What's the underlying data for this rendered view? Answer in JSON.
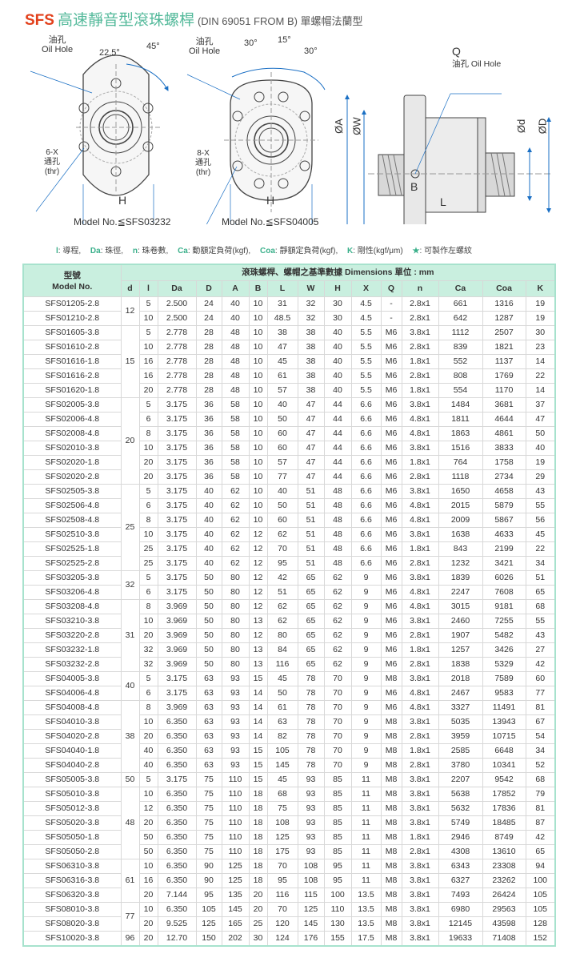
{
  "title": {
    "brand": "SFS",
    "chinese": "高速靜音型滾珠螺桿",
    "subtitle": "(DIN 69051 FROM B) 單螺帽法蘭型"
  },
  "drawings": {
    "left": {
      "oil_hole_cn": "油孔",
      "oil_hole": "Oil Hole",
      "angle1": "22.5°",
      "angle2": "45°",
      "holes": "6-X",
      "holes_cn": "通孔",
      "holes_thr": "(thr)",
      "dim": "H",
      "model": "Model No.≦SFS03232"
    },
    "middle": {
      "oil_hole_cn": "油孔",
      "oil_hole": "Oil Hole",
      "angle1": "30°",
      "angle2": "15°",
      "angle3": "30°",
      "holes": "8-X",
      "holes_cn": "通孔",
      "holes_thr": "(thr)",
      "dim": "H",
      "model": "Model No.≦SFS04005"
    },
    "side": {
      "q": "Q",
      "oil_hole_cn": "油孔",
      "oil_hole": "Oil Hole",
      "a": "ØA",
      "w": "ØW",
      "d": "Ød",
      "D": "ØD",
      "b": "B",
      "l": "L"
    }
  },
  "legend": [
    {
      "key": "l",
      "text": ": 導程,"
    },
    {
      "key": "Da",
      "text": ": 珠徑,"
    },
    {
      "key": "n",
      "text": ": 珠卷數,"
    },
    {
      "key": "Ca",
      "text": ": 動額定負荷(kgf),"
    },
    {
      "key": "Coa",
      "text": ": 靜額定負荷(kgf),"
    },
    {
      "key": "K",
      "text": ": 剛性(kgf/μm)"
    },
    {
      "key": "★",
      "text": ": 可製作左螺紋"
    }
  ],
  "table": {
    "model_header_cn": "型號",
    "model_header": "Model No.",
    "group_header": "滾珠螺桿、螺帽之基準數據 Dimensions  單位 : mm",
    "columns": [
      "d",
      "l",
      "Da",
      "D",
      "A",
      "B",
      "L",
      "W",
      "H",
      "X",
      "Q",
      "n",
      "Ca",
      "Coa",
      "K"
    ],
    "groups": [
      {
        "d": "12",
        "rows": [
          [
            "SFS01205-2.8",
            "5",
            "2.500",
            "24",
            "40",
            "10",
            "31",
            "32",
            "30",
            "4.5",
            "-",
            "2.8x1",
            "661",
            "1316",
            "19"
          ],
          [
            "SFS01210-2.8",
            "10",
            "2.500",
            "24",
            "40",
            "10",
            "48.5",
            "32",
            "30",
            "4.5",
            "-",
            "2.8x1",
            "642",
            "1287",
            "19"
          ]
        ]
      },
      {
        "d": "15",
        "rows": [
          [
            "SFS01605-3.8",
            "5",
            "2.778",
            "28",
            "48",
            "10",
            "38",
            "38",
            "40",
            "5.5",
            "M6",
            "3.8x1",
            "1112",
            "2507",
            "30"
          ],
          [
            "SFS01610-2.8",
            "10",
            "2.778",
            "28",
            "48",
            "10",
            "47",
            "38",
            "40",
            "5.5",
            "M6",
            "2.8x1",
            "839",
            "1821",
            "23"
          ],
          [
            "SFS01616-1.8",
            "16",
            "2.778",
            "28",
            "48",
            "10",
            "45",
            "38",
            "40",
            "5.5",
            "M6",
            "1.8x1",
            "552",
            "1137",
            "14"
          ],
          [
            "SFS01616-2.8",
            "16",
            "2.778",
            "28",
            "48",
            "10",
            "61",
            "38",
            "40",
            "5.5",
            "M6",
            "2.8x1",
            "808",
            "1769",
            "22"
          ],
          [
            "SFS01620-1.8",
            "20",
            "2.778",
            "28",
            "48",
            "10",
            "57",
            "38",
            "40",
            "5.5",
            "M6",
            "1.8x1",
            "554",
            "1170",
            "14"
          ]
        ]
      },
      {
        "d": "20",
        "rows": [
          [
            "SFS02005-3.8",
            "5",
            "3.175",
            "36",
            "58",
            "10",
            "40",
            "47",
            "44",
            "6.6",
            "M6",
            "3.8x1",
            "1484",
            "3681",
            "37"
          ],
          [
            "SFS02006-4.8",
            "6",
            "3.175",
            "36",
            "58",
            "10",
            "50",
            "47",
            "44",
            "6.6",
            "M6",
            "4.8x1",
            "1811",
            "4644",
            "47"
          ],
          [
            "SFS02008-4.8",
            "8",
            "3.175",
            "36",
            "58",
            "10",
            "60",
            "47",
            "44",
            "6.6",
            "M6",
            "4.8x1",
            "1863",
            "4861",
            "50"
          ],
          [
            "SFS02010-3.8",
            "10",
            "3.175",
            "36",
            "58",
            "10",
            "60",
            "47",
            "44",
            "6.6",
            "M6",
            "3.8x1",
            "1516",
            "3833",
            "40"
          ],
          [
            "SFS02020-1.8",
            "20",
            "3.175",
            "36",
            "58",
            "10",
            "57",
            "47",
            "44",
            "6.6",
            "M6",
            "1.8x1",
            "764",
            "1758",
            "19"
          ],
          [
            "SFS02020-2.8",
            "20",
            "3.175",
            "36",
            "58",
            "10",
            "77",
            "47",
            "44",
            "6.6",
            "M6",
            "2.8x1",
            "1118",
            "2734",
            "29"
          ]
        ]
      },
      {
        "d": "25",
        "rows": [
          [
            "SFS02505-3.8",
            "5",
            "3.175",
            "40",
            "62",
            "10",
            "40",
            "51",
            "48",
            "6.6",
            "M6",
            "3.8x1",
            "1650",
            "4658",
            "43"
          ],
          [
            "SFS02506-4.8",
            "6",
            "3.175",
            "40",
            "62",
            "10",
            "50",
            "51",
            "48",
            "6.6",
            "M6",
            "4.8x1",
            "2015",
            "5879",
            "55"
          ],
          [
            "SFS02508-4.8",
            "8",
            "3.175",
            "40",
            "62",
            "10",
            "60",
            "51",
            "48",
            "6.6",
            "M6",
            "4.8x1",
            "2009",
            "5867",
            "56"
          ],
          [
            "SFS02510-3.8",
            "10",
            "3.175",
            "40",
            "62",
            "12",
            "62",
            "51",
            "48",
            "6.6",
            "M6",
            "3.8x1",
            "1638",
            "4633",
            "45"
          ],
          [
            "SFS02525-1.8",
            "25",
            "3.175",
            "40",
            "62",
            "12",
            "70",
            "51",
            "48",
            "6.6",
            "M6",
            "1.8x1",
            "843",
            "2199",
            "22"
          ],
          [
            "SFS02525-2.8",
            "25",
            "3.175",
            "40",
            "62",
            "12",
            "95",
            "51",
            "48",
            "6.6",
            "M6",
            "2.8x1",
            "1232",
            "3421",
            "34"
          ]
        ]
      },
      {
        "d": "32",
        "rows": [
          [
            "SFS03205-3.8",
            "5",
            "3.175",
            "50",
            "80",
            "12",
            "42",
            "65",
            "62",
            "9",
            "M6",
            "3.8x1",
            "1839",
            "6026",
            "51"
          ],
          [
            "SFS03206-4.8",
            "6",
            "3.175",
            "50",
            "80",
            "12",
            "51",
            "65",
            "62",
            "9",
            "M6",
            "4.8x1",
            "2247",
            "7608",
            "65"
          ]
        ]
      },
      {
        "d": "31",
        "rows": [
          [
            "SFS03208-4.8",
            "8",
            "3.969",
            "50",
            "80",
            "12",
            "62",
            "65",
            "62",
            "9",
            "M6",
            "4.8x1",
            "3015",
            "9181",
            "68"
          ],
          [
            "SFS03210-3.8",
            "10",
            "3.969",
            "50",
            "80",
            "13",
            "62",
            "65",
            "62",
            "9",
            "M6",
            "3.8x1",
            "2460",
            "7255",
            "55"
          ],
          [
            "SFS03220-2.8",
            "20",
            "3.969",
            "50",
            "80",
            "12",
            "80",
            "65",
            "62",
            "9",
            "M6",
            "2.8x1",
            "1907",
            "5482",
            "43"
          ],
          [
            "SFS03232-1.8",
            "32",
            "3.969",
            "50",
            "80",
            "13",
            "84",
            "65",
            "62",
            "9",
            "M6",
            "1.8x1",
            "1257",
            "3426",
            "27"
          ],
          [
            "SFS03232-2.8",
            "32",
            "3.969",
            "50",
            "80",
            "13",
            "116",
            "65",
            "62",
            "9",
            "M6",
            "2.8x1",
            "1838",
            "5329",
            "42"
          ]
        ]
      },
      {
        "d": "40",
        "rows": [
          [
            "SFS04005-3.8",
            "5",
            "3.175",
            "63",
            "93",
            "15",
            "45",
            "78",
            "70",
            "9",
            "M8",
            "3.8x1",
            "2018",
            "7589",
            "60"
          ],
          [
            "SFS04006-4.8",
            "6",
            "3.175",
            "63",
            "93",
            "14",
            "50",
            "78",
            "70",
            "9",
            "M6",
            "4.8x1",
            "2467",
            "9583",
            "77"
          ]
        ]
      },
      {
        "d": "38",
        "rows": [
          [
            "SFS04008-4.8",
            "8",
            "3.969",
            "63",
            "93",
            "14",
            "61",
            "78",
            "70",
            "9",
            "M6",
            "4.8x1",
            "3327",
            "11491",
            "81"
          ],
          [
            "SFS04010-3.8",
            "10",
            "6.350",
            "63",
            "93",
            "14",
            "63",
            "78",
            "70",
            "9",
            "M8",
            "3.8x1",
            "5035",
            "13943",
            "67"
          ],
          [
            "SFS04020-2.8",
            "20",
            "6.350",
            "63",
            "93",
            "14",
            "82",
            "78",
            "70",
            "9",
            "M8",
            "2.8x1",
            "3959",
            "10715",
            "54"
          ],
          [
            "SFS04040-1.8",
            "40",
            "6.350",
            "63",
            "93",
            "15",
            "105",
            "78",
            "70",
            "9",
            "M8",
            "1.8x1",
            "2585",
            "6648",
            "34"
          ],
          [
            "SFS04040-2.8",
            "40",
            "6.350",
            "63",
            "93",
            "15",
            "145",
            "78",
            "70",
            "9",
            "M8",
            "2.8x1",
            "3780",
            "10341",
            "52"
          ]
        ]
      },
      {
        "d": "50",
        "rows": [
          [
            "SFS05005-3.8",
            "5",
            "3.175",
            "75",
            "110",
            "15",
            "45",
            "93",
            "85",
            "11",
            "M8",
            "3.8x1",
            "2207",
            "9542",
            "68"
          ]
        ]
      },
      {
        "d": "48",
        "rows": [
          [
            "SFS05010-3.8",
            "10",
            "6.350",
            "75",
            "110",
            "18",
            "68",
            "93",
            "85",
            "11",
            "M8",
            "3.8x1",
            "5638",
            "17852",
            "79"
          ],
          [
            "SFS05012-3.8",
            "12",
            "6.350",
            "75",
            "110",
            "18",
            "75",
            "93",
            "85",
            "11",
            "M8",
            "3.8x1",
            "5632",
            "17836",
            "81"
          ],
          [
            "SFS05020-3.8",
            "20",
            "6.350",
            "75",
            "110",
            "18",
            "108",
            "93",
            "85",
            "11",
            "M8",
            "3.8x1",
            "5749",
            "18485",
            "87"
          ],
          [
            "SFS05050-1.8",
            "50",
            "6.350",
            "75",
            "110",
            "18",
            "125",
            "93",
            "85",
            "11",
            "M8",
            "1.8x1",
            "2946",
            "8749",
            "42"
          ],
          [
            "SFS05050-2.8",
            "50",
            "6.350",
            "75",
            "110",
            "18",
            "175",
            "93",
            "85",
            "11",
            "M8",
            "2.8x1",
            "4308",
            "13610",
            "65"
          ]
        ]
      },
      {
        "d": "61",
        "rows": [
          [
            "SFS06310-3.8",
            "10",
            "6.350",
            "90",
            "125",
            "18",
            "70",
            "108",
            "95",
            "11",
            "M8",
            "3.8x1",
            "6343",
            "23308",
            "94"
          ],
          [
            "SFS06316-3.8",
            "16",
            "6.350",
            "90",
            "125",
            "18",
            "95",
            "108",
            "95",
            "11",
            "M8",
            "3.8x1",
            "6327",
            "23262",
            "100"
          ],
          [
            "SFS06320-3.8",
            "20",
            "7.144",
            "95",
            "135",
            "20",
            "116",
            "115",
            "100",
            "13.5",
            "M8",
            "3.8x1",
            "7493",
            "26424",
            "105"
          ]
        ]
      },
      {
        "d": "77",
        "rows": [
          [
            "SFS08010-3.8",
            "10",
            "6.350",
            "105",
            "145",
            "20",
            "70",
            "125",
            "110",
            "13.5",
            "M8",
            "3.8x1",
            "6980",
            "29563",
            "105"
          ],
          [
            "SFS08020-3.8",
            "20",
            "9.525",
            "125",
            "165",
            "25",
            "120",
            "145",
            "130",
            "13.5",
            "M8",
            "3.8x1",
            "12145",
            "43598",
            "128"
          ]
        ]
      },
      {
        "d": "96",
        "rows": [
          [
            "SFS10020-3.8",
            "20",
            "12.70",
            "150",
            "202",
            "30",
            "124",
            "176",
            "155",
            "17.5",
            "M8",
            "3.8x1",
            "19633",
            "71408",
            "152"
          ]
        ]
      }
    ]
  }
}
